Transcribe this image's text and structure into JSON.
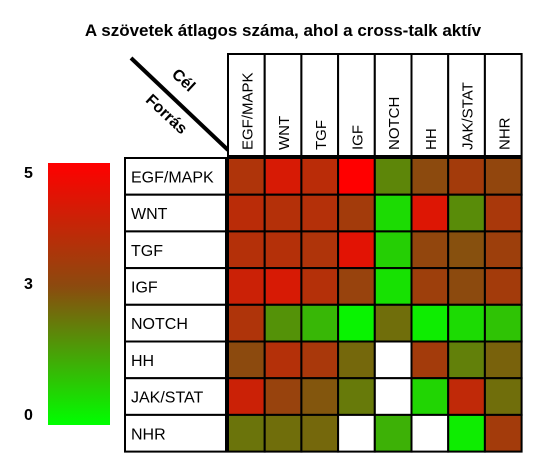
{
  "chart_data": {
    "type": "heatmap",
    "title": "A szövetek átlagos száma, ahol a cross-talk aktív",
    "corner_labels": {
      "column_axis": "Cél",
      "row_axis": "Forrás"
    },
    "columns": [
      "EGF/MAPK",
      "WNT",
      "TGF",
      "IGF",
      "NOTCH",
      "HH",
      "JAK/STAT",
      "NHR"
    ],
    "rows": [
      "EGF/MAPK",
      "WNT",
      "TGF",
      "IGF",
      "NOTCH",
      "HH",
      "JAK/STAT",
      "NHR"
    ],
    "values": [
      [
        3.6,
        4.3,
        3.8,
        5.0,
        2.0,
        3.0,
        3.4,
        3.1
      ],
      [
        3.8,
        3.7,
        3.7,
        3.4,
        0.6,
        4.4,
        1.9,
        3.5
      ],
      [
        3.7,
        3.7,
        3.6,
        4.5,
        0.8,
        3.1,
        2.9,
        3.3
      ],
      [
        4.1,
        4.3,
        3.7,
        3.2,
        0.5,
        3.3,
        3.0,
        3.4
      ],
      [
        3.6,
        1.8,
        1.2,
        0.2,
        2.4,
        0.3,
        0.6,
        1.0
      ],
      [
        3.0,
        3.7,
        3.5,
        2.5,
        null,
        3.4,
        2.1,
        2.6
      ],
      [
        4.1,
        3.2,
        2.8,
        2.2,
        null,
        0.7,
        3.9,
        2.4
      ],
      [
        2.3,
        2.4,
        2.5,
        null,
        1.3,
        null,
        0.3,
        3.4
      ]
    ],
    "color_scale": {
      "min": 0,
      "mid": 3,
      "max": 5,
      "min_color": "#00ff00",
      "mid_color": "#8c4a0e",
      "max_color": "#ff0000",
      "empty_color": "#ffffff"
    },
    "legend": {
      "ticks": [
        "5",
        "3",
        "0"
      ],
      "placement": "left"
    },
    "grid": true
  }
}
